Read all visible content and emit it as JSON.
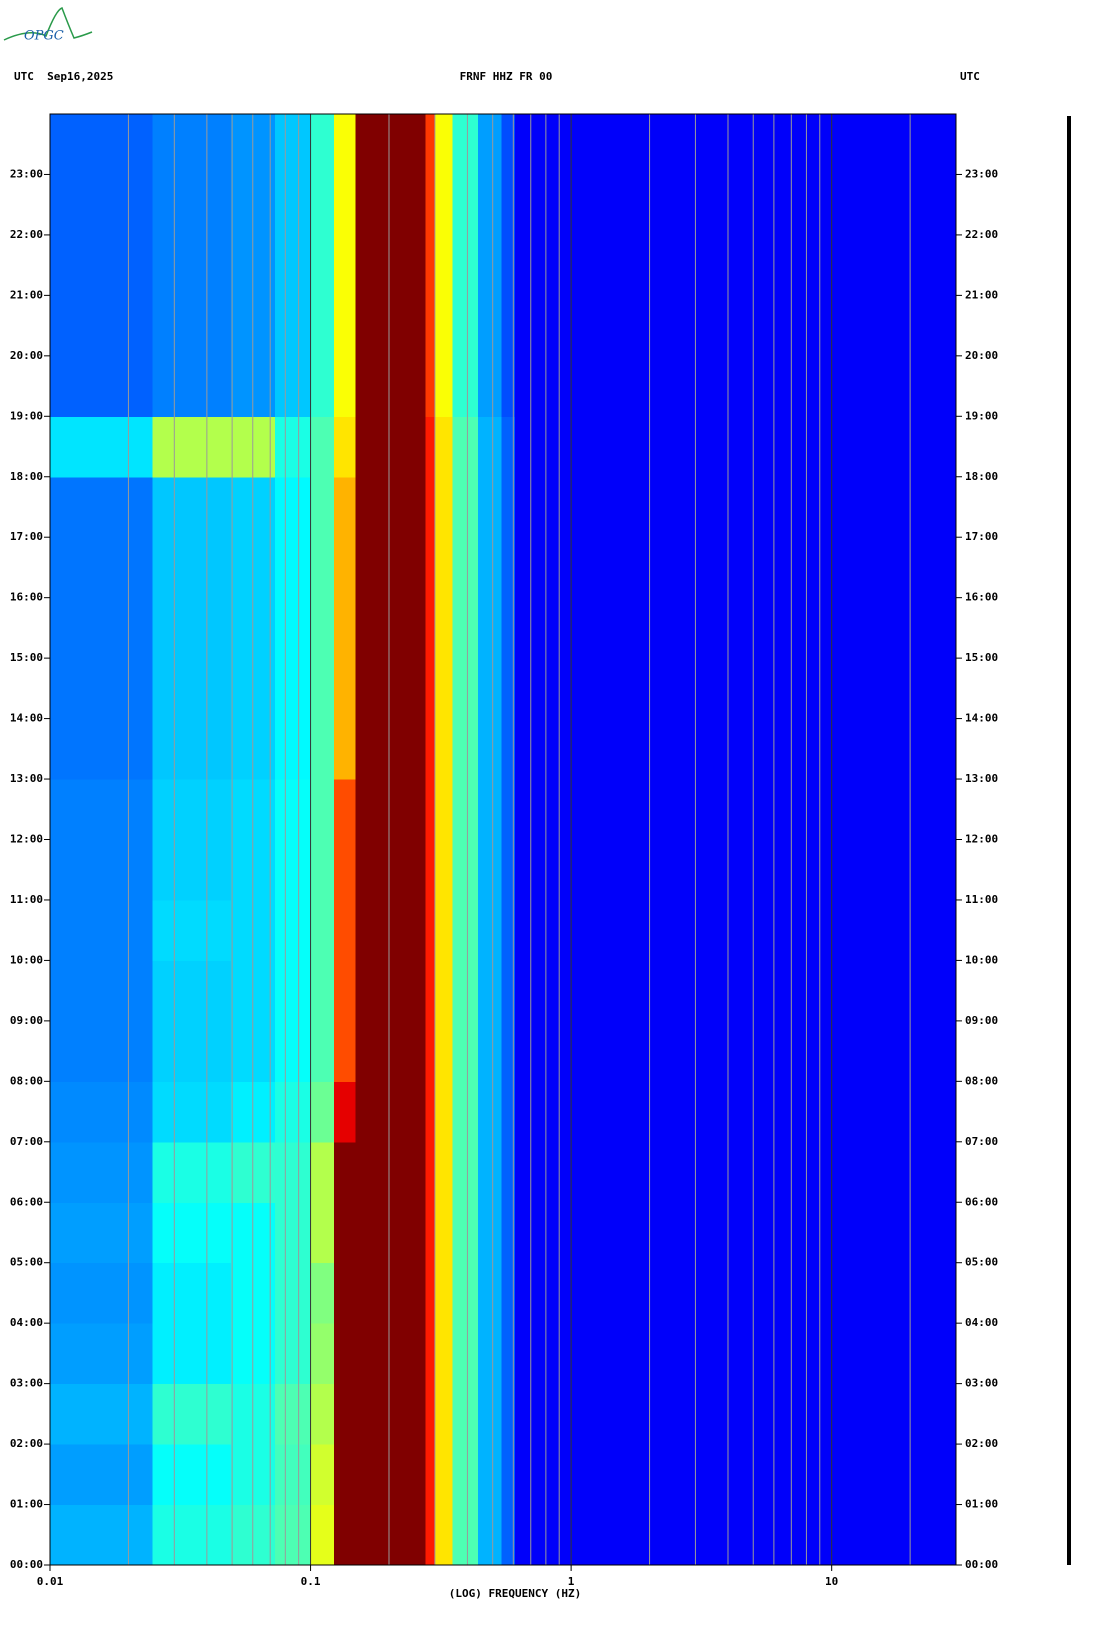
{
  "chart_data": {
    "type": "spectrogram",
    "logo": "OPGC",
    "title_left": "UTC  Sep16,2025",
    "title": "FRNF HHZ FR 00",
    "title_right": "UTC",
    "xlabel": "(LOG) FREQUENCY (HZ)",
    "xscale": "log",
    "colormap": "jet",
    "xlim": [
      0.01,
      30
    ],
    "xticks": [
      0.01,
      0.1,
      1,
      10
    ],
    "xgrid": [
      0.02,
      0.03,
      0.04,
      0.05,
      0.06,
      0.07,
      0.08,
      0.09,
      0.1,
      0.2,
      0.3,
      0.4,
      0.5,
      0.6,
      0.7,
      0.8,
      0.9,
      1,
      2,
      3,
      4,
      5,
      6,
      7,
      8,
      9,
      10,
      20
    ],
    "ylim": [
      0,
      24
    ],
    "yticks": [
      {
        "value": 0,
        "label": "00:00"
      },
      {
        "value": 1,
        "label": "01:00"
      },
      {
        "value": 2,
        "label": "02:00"
      },
      {
        "value": 3,
        "label": "03:00"
      },
      {
        "value": 4,
        "label": "04:00"
      },
      {
        "value": 5,
        "label": "05:00"
      },
      {
        "value": 6,
        "label": "06:00"
      },
      {
        "value": 7,
        "label": "07:00"
      },
      {
        "value": 8,
        "label": "08:00"
      },
      {
        "value": 9,
        "label": "09:00"
      },
      {
        "value": 10,
        "label": "10:00"
      },
      {
        "value": 11,
        "label": "11:00"
      },
      {
        "value": 12,
        "label": "12:00"
      },
      {
        "value": 13,
        "label": "13:00"
      },
      {
        "value": 14,
        "label": "14:00"
      },
      {
        "value": 15,
        "label": "15:00"
      },
      {
        "value": 16,
        "label": "16:00"
      },
      {
        "value": 17,
        "label": "17:00"
      },
      {
        "value": 18,
        "label": "18:00"
      },
      {
        "value": 19,
        "label": "19:00"
      },
      {
        "value": 20,
        "label": "20:00"
      },
      {
        "value": 21,
        "label": "21:00"
      },
      {
        "value": 22,
        "label": "22:00"
      },
      {
        "value": 23,
        "label": "23:00"
      }
    ],
    "freq_edges": [
      0.01,
      0.0247,
      0.0495,
      0.073,
      0.1,
      0.123,
      0.149,
      0.276,
      0.3,
      0.35,
      0.44,
      0.54,
      0.61,
      30
    ],
    "time_edges": [
      0,
      1,
      2,
      3,
      4,
      5,
      6,
      7,
      8,
      9,
      10,
      11,
      12,
      13,
      14,
      15,
      16,
      17,
      18,
      19,
      20,
      21,
      22,
      23,
      24
    ],
    "z": [
      [
        0.3,
        0.4,
        0.42,
        0.45,
        0.6,
        1,
        1,
        0.85,
        0.65,
        0.45,
        0.3,
        0.22,
        0.12
      ],
      [
        0.28,
        0.38,
        0.4,
        0.44,
        0.58,
        1,
        1,
        0.85,
        0.65,
        0.45,
        0.3,
        0.22,
        0.12
      ],
      [
        0.3,
        0.42,
        0.4,
        0.45,
        0.55,
        1,
        1,
        0.85,
        0.65,
        0.45,
        0.3,
        0.22,
        0.12
      ],
      [
        0.28,
        0.36,
        0.38,
        0.42,
        0.52,
        1,
        1,
        0.85,
        0.65,
        0.45,
        0.3,
        0.22,
        0.12
      ],
      [
        0.27,
        0.36,
        0.38,
        0.42,
        0.5,
        1,
        1,
        0.85,
        0.65,
        0.45,
        0.3,
        0.22,
        0.12
      ],
      [
        0.28,
        0.38,
        0.38,
        0.42,
        0.55,
        1,
        1,
        0.85,
        0.65,
        0.45,
        0.3,
        0.22,
        0.12
      ],
      [
        0.27,
        0.4,
        0.42,
        0.42,
        0.55,
        1,
        1,
        0.85,
        0.65,
        0.45,
        0.3,
        0.22,
        0.12
      ],
      [
        0.26,
        0.34,
        0.36,
        0.4,
        0.48,
        0.9,
        1,
        0.85,
        0.65,
        0.45,
        0.3,
        0.22,
        0.12
      ],
      [
        0.25,
        0.33,
        0.34,
        0.38,
        0.45,
        0.8,
        1,
        0.85,
        0.65,
        0.45,
        0.3,
        0.22,
        0.12
      ],
      [
        0.25,
        0.33,
        0.34,
        0.38,
        0.45,
        0.8,
        1,
        0.85,
        0.65,
        0.45,
        0.3,
        0.22,
        0.12
      ],
      [
        0.25,
        0.34,
        0.34,
        0.38,
        0.45,
        0.8,
        1,
        0.85,
        0.65,
        0.45,
        0.3,
        0.22,
        0.12
      ],
      [
        0.25,
        0.33,
        0.34,
        0.38,
        0.45,
        0.8,
        1,
        0.85,
        0.65,
        0.45,
        0.3,
        0.22,
        0.12
      ],
      [
        0.25,
        0.33,
        0.34,
        0.38,
        0.45,
        0.8,
        1,
        0.85,
        0.65,
        0.45,
        0.3,
        0.22,
        0.12
      ],
      [
        0.24,
        0.32,
        0.33,
        0.37,
        0.45,
        0.7,
        1,
        0.85,
        0.65,
        0.45,
        0.3,
        0.22,
        0.12
      ],
      [
        0.24,
        0.32,
        0.33,
        0.37,
        0.45,
        0.7,
        1,
        0.85,
        0.65,
        0.45,
        0.3,
        0.22,
        0.12
      ],
      [
        0.24,
        0.32,
        0.33,
        0.37,
        0.45,
        0.7,
        1,
        0.85,
        0.65,
        0.45,
        0.3,
        0.22,
        0.12
      ],
      [
        0.24,
        0.32,
        0.33,
        0.37,
        0.45,
        0.7,
        1,
        0.85,
        0.65,
        0.45,
        0.3,
        0.22,
        0.12
      ],
      [
        0.24,
        0.32,
        0.33,
        0.37,
        0.45,
        0.7,
        1,
        0.85,
        0.65,
        0.45,
        0.3,
        0.22,
        0.12
      ],
      [
        0.35,
        0.55,
        0.55,
        0.4,
        0.45,
        0.65,
        1,
        0.85,
        0.65,
        0.45,
        0.3,
        0.22,
        0.12
      ],
      [
        0.22,
        0.25,
        0.27,
        0.32,
        0.42,
        0.62,
        1,
        0.82,
        0.62,
        0.42,
        0.28,
        0.2,
        0.12
      ],
      [
        0.22,
        0.25,
        0.27,
        0.32,
        0.42,
        0.62,
        1,
        0.82,
        0.62,
        0.42,
        0.28,
        0.2,
        0.12
      ],
      [
        0.22,
        0.25,
        0.27,
        0.32,
        0.42,
        0.62,
        1,
        0.82,
        0.62,
        0.42,
        0.28,
        0.2,
        0.12
      ],
      [
        0.22,
        0.25,
        0.27,
        0.32,
        0.42,
        0.62,
        1,
        0.82,
        0.62,
        0.42,
        0.28,
        0.2,
        0.12
      ],
      [
        0.22,
        0.25,
        0.27,
        0.32,
        0.42,
        0.62,
        1,
        0.82,
        0.62,
        0.42,
        0.28,
        0.2,
        0.12
      ]
    ]
  }
}
